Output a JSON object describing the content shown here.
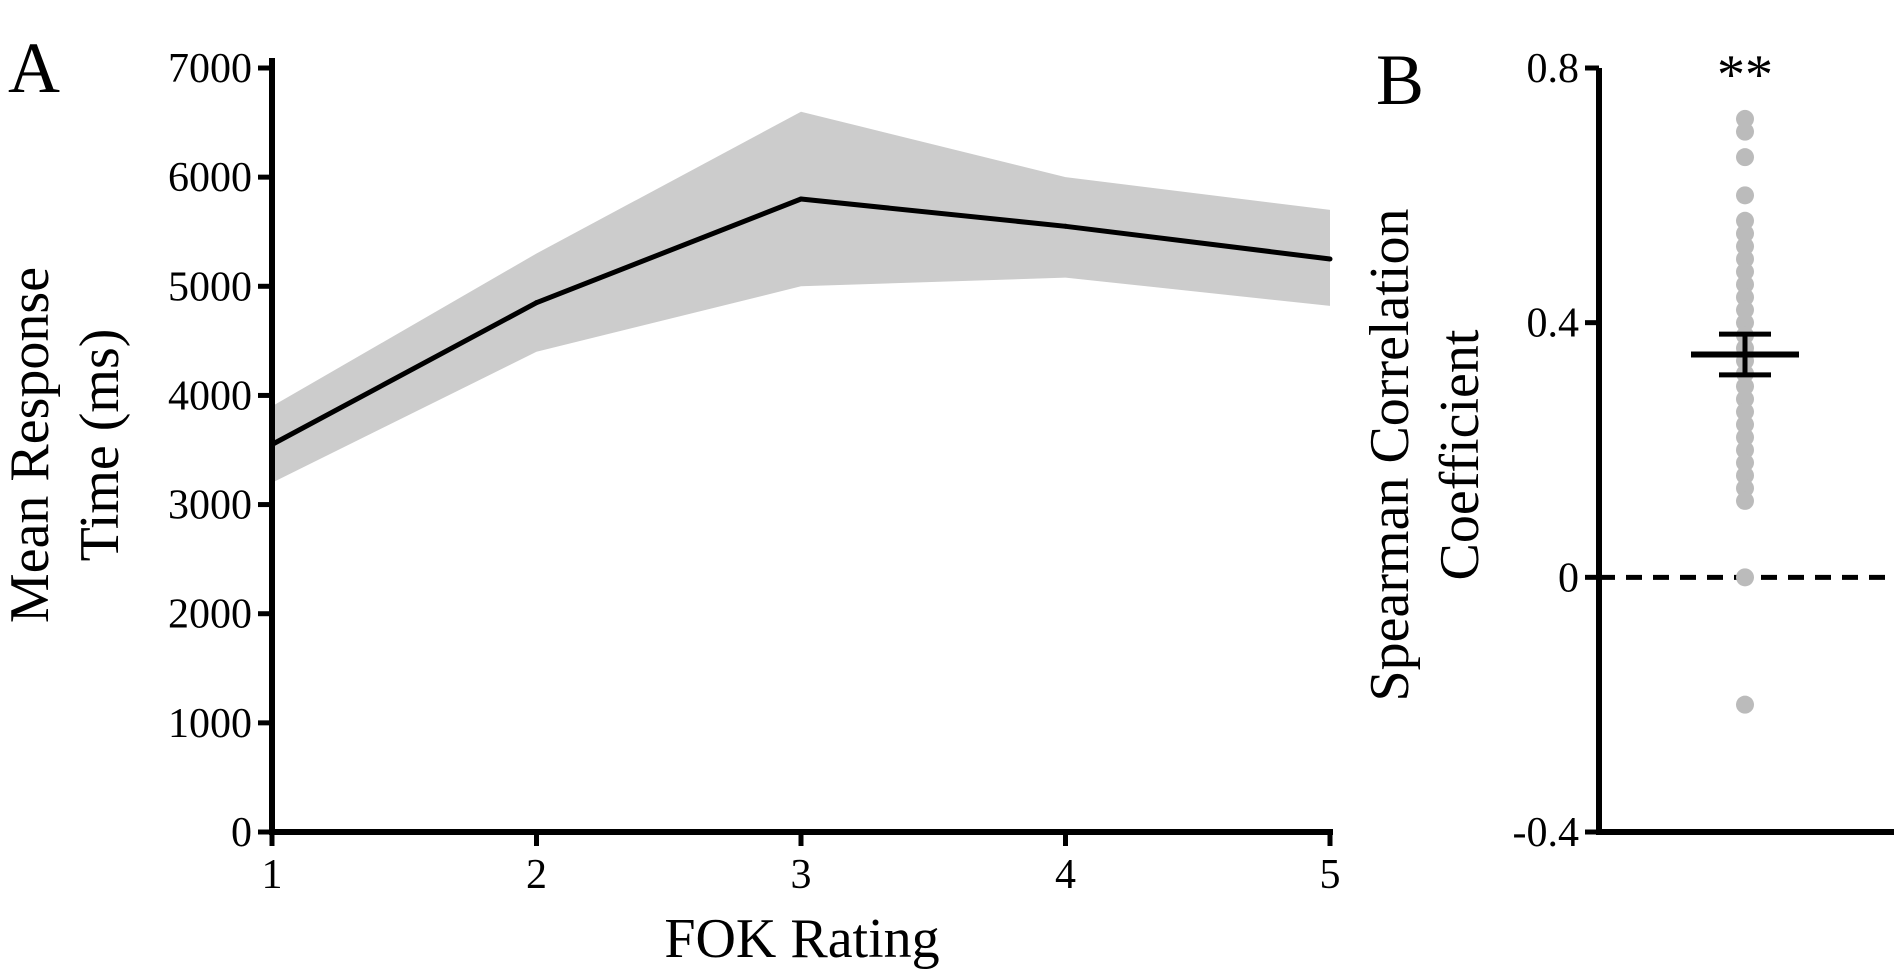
{
  "chart_data": [
    {
      "panel": "A",
      "type": "line",
      "xlabel": "FOK Rating",
      "ylabel_lines": [
        "Mean Response",
        "Time (ms)"
      ],
      "x": [
        1,
        2,
        3,
        4,
        5
      ],
      "x_tick_labels": [
        "1",
        "2",
        "3",
        "4",
        "5"
      ],
      "y_tick_labels": [
        "0",
        "1000",
        "2000",
        "3000",
        "4000",
        "5000",
        "6000",
        "7000"
      ],
      "ylim": [
        0,
        7000
      ],
      "series": [
        {
          "values": [
            3550,
            4850,
            5800,
            5550,
            5250
          ],
          "color": "#000000"
        }
      ],
      "band": {
        "upper": [
          3900,
          5300,
          6600,
          6000,
          5700
        ],
        "lower": [
          3200,
          4400,
          5000,
          5080,
          4820
        ],
        "color": "#cccccc"
      }
    },
    {
      "panel": "B",
      "type": "scatter",
      "ylabel_lines": [
        "Spearman Correlation",
        "Coefficient"
      ],
      "y_tick_labels": [
        "-0.4",
        "0",
        "0.4",
        "0.8"
      ],
      "ylim": [
        -0.4,
        0.8
      ],
      "points": [
        0.72,
        0.7,
        0.66,
        0.6,
        0.56,
        0.54,
        0.52,
        0.5,
        0.48,
        0.46,
        0.44,
        0.42,
        0.4,
        0.38,
        0.36,
        0.34,
        0.32,
        0.3,
        0.28,
        0.26,
        0.24,
        0.22,
        0.2,
        0.18,
        0.16,
        0.14,
        0.12,
        0.0,
        -0.2
      ],
      "point_color": "#bbbbbb",
      "mean": 0.35,
      "sem": 0.032,
      "reference_line": 0,
      "significance": "**"
    }
  ]
}
